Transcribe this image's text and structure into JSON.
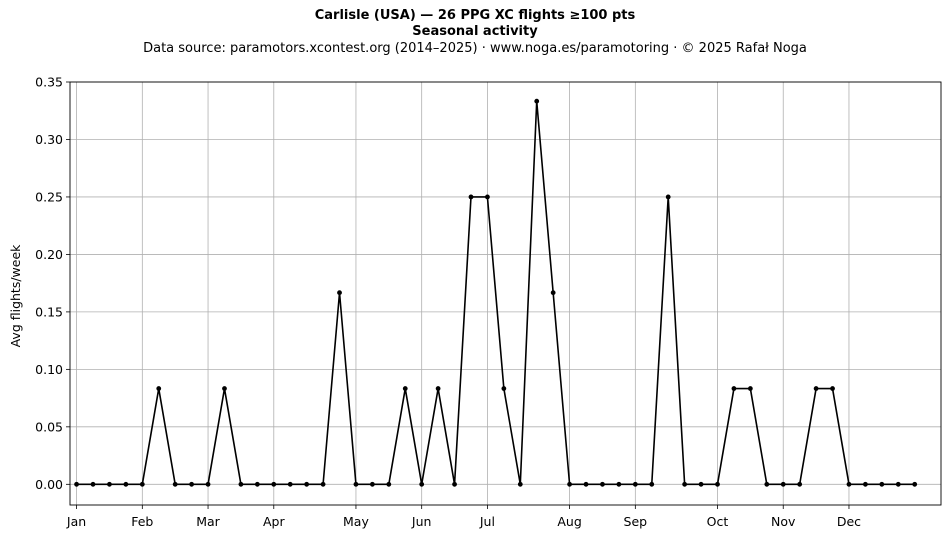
{
  "chart_data": {
    "type": "line",
    "title": "Carlisle (USA)  —  26 PPG XC flights ≥100 pts",
    "subtitle": "Seasonal activity",
    "source_note": "Data source: paramotors.xcontest.org (2014–2025)  ·  www.noga.es/paramotoring  ·  © 2025 Rafał Noga",
    "xlabel": "",
    "ylabel": "Avg flights/week",
    "ylim": [
      -0.018,
      0.35
    ],
    "xlim": [
      0.6,
      53.6
    ],
    "yticks": [
      0.0,
      0.05,
      0.1,
      0.15,
      0.2,
      0.25,
      0.3,
      0.35
    ],
    "ytick_labels": [
      "0.00",
      "0.05",
      "0.10",
      "0.15",
      "0.20",
      "0.25",
      "0.30",
      "0.35"
    ],
    "xticks": [
      {
        "label": "Jan",
        "x": 1
      },
      {
        "label": "Feb",
        "x": 5
      },
      {
        "label": "Mar",
        "x": 9
      },
      {
        "label": "Apr",
        "x": 13
      },
      {
        "label": "May",
        "x": 18
      },
      {
        "label": "Jun",
        "x": 22
      },
      {
        "label": "Jul",
        "x": 26
      },
      {
        "label": "Aug",
        "x": 31
      },
      {
        "label": "Sep",
        "x": 35
      },
      {
        "label": "Oct",
        "x": 40
      },
      {
        "label": "Nov",
        "x": 44
      },
      {
        "label": "Dec",
        "x": 48
      }
    ],
    "grid": true,
    "series": [
      {
        "x": [
          1,
          2,
          3,
          4,
          5,
          6,
          7,
          8,
          9,
          10,
          11,
          12,
          13,
          14,
          15,
          16,
          17,
          18,
          19,
          20,
          21,
          22,
          23,
          24,
          25,
          26,
          27,
          28,
          29,
          30,
          31,
          32,
          33,
          34,
          35,
          36,
          37,
          38,
          39,
          40,
          41,
          42,
          43,
          44,
          45,
          46,
          47,
          48,
          49,
          50,
          51,
          52
        ],
        "values": [
          0,
          0,
          0,
          0,
          0,
          0.0833,
          0,
          0,
          0,
          0.0833,
          0,
          0,
          0,
          0,
          0,
          0,
          0.1667,
          0,
          0,
          0,
          0.0833,
          0,
          0.0833,
          0,
          0.25,
          0.25,
          0.0833,
          0,
          0.3333,
          0.1667,
          0,
          0,
          0,
          0,
          0,
          0,
          0.25,
          0,
          0,
          0,
          0.0833,
          0.0833,
          0,
          0,
          0,
          0.0833,
          0.0833,
          0,
          0,
          0,
          0,
          0
        ],
        "color": "#000000"
      }
    ]
  }
}
